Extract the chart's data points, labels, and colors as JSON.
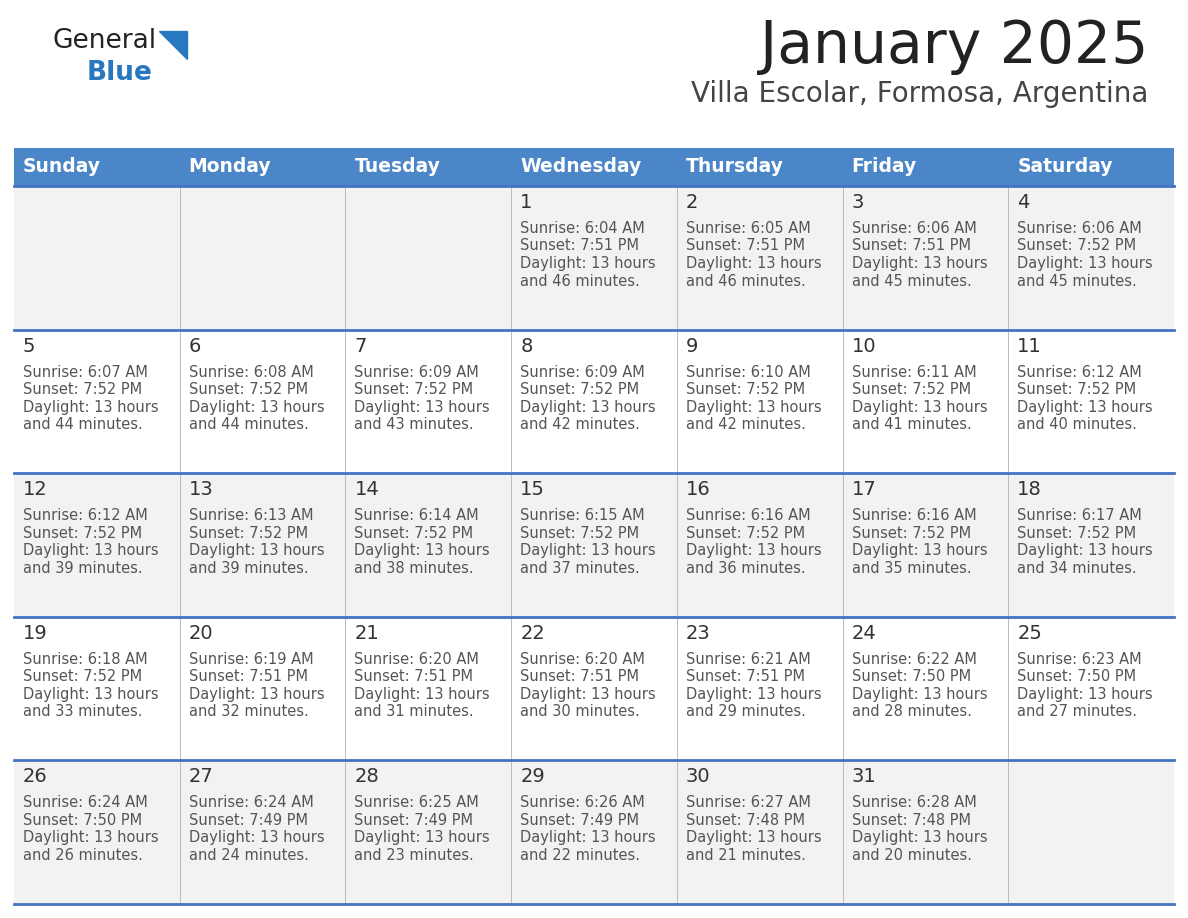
{
  "title": "January 2025",
  "subtitle": "Villa Escolar, Formosa, Argentina",
  "days_of_week": [
    "Sunday",
    "Monday",
    "Tuesday",
    "Wednesday",
    "Thursday",
    "Friday",
    "Saturday"
  ],
  "header_bg": "#4a86c8",
  "header_text": "#ffffff",
  "row_bg_light": "#f2f2f2",
  "row_bg_white": "#ffffff",
  "separator_color": "#4472c4",
  "day_num_color": "#333333",
  "cell_text_color": "#555555",
  "title_color": "#222222",
  "subtitle_color": "#444444",
  "logo_color1": "#222222",
  "logo_color2": "#2878c0",
  "calendar": [
    [
      {
        "day": "",
        "sunrise": "",
        "sunset": "",
        "daylight": ""
      },
      {
        "day": "",
        "sunrise": "",
        "sunset": "",
        "daylight": ""
      },
      {
        "day": "",
        "sunrise": "",
        "sunset": "",
        "daylight": ""
      },
      {
        "day": "1",
        "sunrise": "6:04 AM",
        "sunset": "7:51 PM",
        "daylight": "13 hours and 46 minutes."
      },
      {
        "day": "2",
        "sunrise": "6:05 AM",
        "sunset": "7:51 PM",
        "daylight": "13 hours and 46 minutes."
      },
      {
        "day": "3",
        "sunrise": "6:06 AM",
        "sunset": "7:51 PM",
        "daylight": "13 hours and 45 minutes."
      },
      {
        "day": "4",
        "sunrise": "6:06 AM",
        "sunset": "7:52 PM",
        "daylight": "13 hours and 45 minutes."
      }
    ],
    [
      {
        "day": "5",
        "sunrise": "6:07 AM",
        "sunset": "7:52 PM",
        "daylight": "13 hours and 44 minutes."
      },
      {
        "day": "6",
        "sunrise": "6:08 AM",
        "sunset": "7:52 PM",
        "daylight": "13 hours and 44 minutes."
      },
      {
        "day": "7",
        "sunrise": "6:09 AM",
        "sunset": "7:52 PM",
        "daylight": "13 hours and 43 minutes."
      },
      {
        "day": "8",
        "sunrise": "6:09 AM",
        "sunset": "7:52 PM",
        "daylight": "13 hours and 42 minutes."
      },
      {
        "day": "9",
        "sunrise": "6:10 AM",
        "sunset": "7:52 PM",
        "daylight": "13 hours and 42 minutes."
      },
      {
        "day": "10",
        "sunrise": "6:11 AM",
        "sunset": "7:52 PM",
        "daylight": "13 hours and 41 minutes."
      },
      {
        "day": "11",
        "sunrise": "6:12 AM",
        "sunset": "7:52 PM",
        "daylight": "13 hours and 40 minutes."
      }
    ],
    [
      {
        "day": "12",
        "sunrise": "6:12 AM",
        "sunset": "7:52 PM",
        "daylight": "13 hours and 39 minutes."
      },
      {
        "day": "13",
        "sunrise": "6:13 AM",
        "sunset": "7:52 PM",
        "daylight": "13 hours and 39 minutes."
      },
      {
        "day": "14",
        "sunrise": "6:14 AM",
        "sunset": "7:52 PM",
        "daylight": "13 hours and 38 minutes."
      },
      {
        "day": "15",
        "sunrise": "6:15 AM",
        "sunset": "7:52 PM",
        "daylight": "13 hours and 37 minutes."
      },
      {
        "day": "16",
        "sunrise": "6:16 AM",
        "sunset": "7:52 PM",
        "daylight": "13 hours and 36 minutes."
      },
      {
        "day": "17",
        "sunrise": "6:16 AM",
        "sunset": "7:52 PM",
        "daylight": "13 hours and 35 minutes."
      },
      {
        "day": "18",
        "sunrise": "6:17 AM",
        "sunset": "7:52 PM",
        "daylight": "13 hours and 34 minutes."
      }
    ],
    [
      {
        "day": "19",
        "sunrise": "6:18 AM",
        "sunset": "7:52 PM",
        "daylight": "13 hours and 33 minutes."
      },
      {
        "day": "20",
        "sunrise": "6:19 AM",
        "sunset": "7:51 PM",
        "daylight": "13 hours and 32 minutes."
      },
      {
        "day": "21",
        "sunrise": "6:20 AM",
        "sunset": "7:51 PM",
        "daylight": "13 hours and 31 minutes."
      },
      {
        "day": "22",
        "sunrise": "6:20 AM",
        "sunset": "7:51 PM",
        "daylight": "13 hours and 30 minutes."
      },
      {
        "day": "23",
        "sunrise": "6:21 AM",
        "sunset": "7:51 PM",
        "daylight": "13 hours and 29 minutes."
      },
      {
        "day": "24",
        "sunrise": "6:22 AM",
        "sunset": "7:50 PM",
        "daylight": "13 hours and 28 minutes."
      },
      {
        "day": "25",
        "sunrise": "6:23 AM",
        "sunset": "7:50 PM",
        "daylight": "13 hours and 27 minutes."
      }
    ],
    [
      {
        "day": "26",
        "sunrise": "6:24 AM",
        "sunset": "7:50 PM",
        "daylight": "13 hours and 26 minutes."
      },
      {
        "day": "27",
        "sunrise": "6:24 AM",
        "sunset": "7:49 PM",
        "daylight": "13 hours and 24 minutes."
      },
      {
        "day": "28",
        "sunrise": "6:25 AM",
        "sunset": "7:49 PM",
        "daylight": "13 hours and 23 minutes."
      },
      {
        "day": "29",
        "sunrise": "6:26 AM",
        "sunset": "7:49 PM",
        "daylight": "13 hours and 22 minutes."
      },
      {
        "day": "30",
        "sunrise": "6:27 AM",
        "sunset": "7:48 PM",
        "daylight": "13 hours and 21 minutes."
      },
      {
        "day": "31",
        "sunrise": "6:28 AM",
        "sunset": "7:48 PM",
        "daylight": "13 hours and 20 minutes."
      },
      {
        "day": "",
        "sunrise": "",
        "sunset": "",
        "daylight": ""
      }
    ]
  ]
}
